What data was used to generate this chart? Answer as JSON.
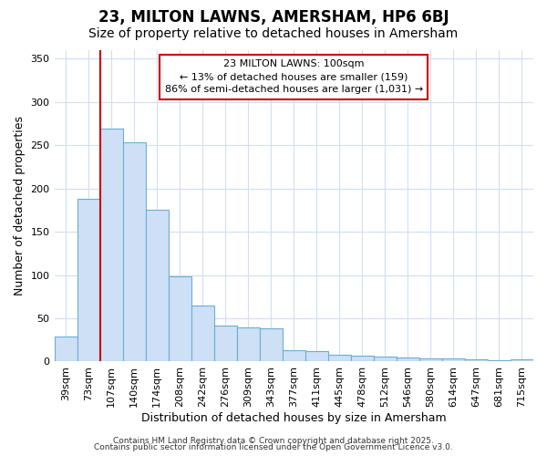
{
  "title1": "23, MILTON LAWNS, AMERSHAM, HP6 6BJ",
  "title2": "Size of property relative to detached houses in Amersham",
  "xlabel": "Distribution of detached houses by size in Amersham",
  "ylabel": "Number of detached properties",
  "categories": [
    "39sqm",
    "73sqm",
    "107sqm",
    "140sqm",
    "174sqm",
    "208sqm",
    "242sqm",
    "276sqm",
    "309sqm",
    "343sqm",
    "377sqm",
    "411sqm",
    "445sqm",
    "478sqm",
    "512sqm",
    "546sqm",
    "580sqm",
    "614sqm",
    "647sqm",
    "681sqm",
    "715sqm"
  ],
  "values": [
    29,
    188,
    269,
    254,
    175,
    99,
    65,
    42,
    40,
    38,
    13,
    12,
    8,
    7,
    6,
    5,
    4,
    4,
    3,
    2,
    3
  ],
  "bar_color": "#cde0f5",
  "bar_edgecolor": "#6aaed6",
  "bar_linewidth": 0.8,
  "vline_x_index": 2,
  "vline_color": "#cc0000",
  "vline_linewidth": 1.5,
  "annotation_text": "23 MILTON LAWNS: 100sqm\n← 13% of detached houses are smaller (159)\n86% of semi-detached houses are larger (1,031) →",
  "annotation_box_edgecolor": "#cc0000",
  "annotation_box_facecolor": "#ffffff",
  "ylim": [
    0,
    360
  ],
  "yticks": [
    0,
    50,
    100,
    150,
    200,
    250,
    300,
    350
  ],
  "fig_background": "#ffffff",
  "axes_background": "#ffffff",
  "grid_color": "#d0dff0",
  "grid_alpha": 1.0,
  "footer1": "Contains HM Land Registry data © Crown copyright and database right 2025.",
  "footer2": "Contains public sector information licensed under the Open Government Licence v3.0.",
  "title1_fontsize": 12,
  "title2_fontsize": 10,
  "xlabel_fontsize": 9,
  "ylabel_fontsize": 9,
  "tick_fontsize": 8,
  "annotation_fontsize": 8,
  "footer_fontsize": 6.5
}
